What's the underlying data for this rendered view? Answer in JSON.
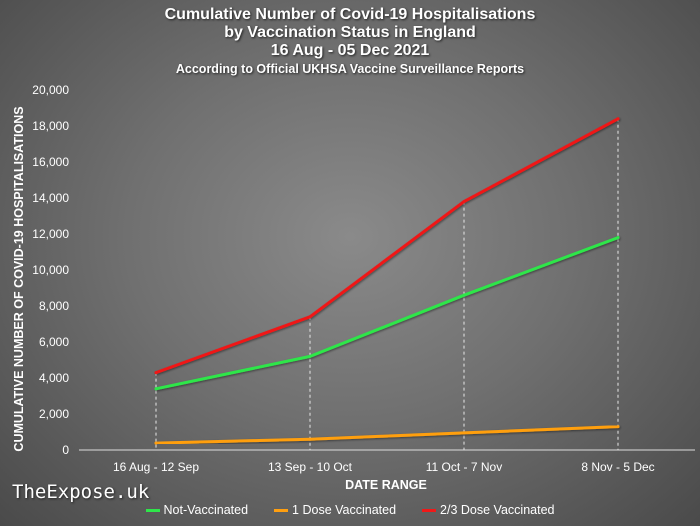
{
  "chart_data": {
    "type": "line",
    "title_lines": [
      "Cumulative Number of Covid-19 Hospitalisations",
      "by Vaccination Status in England",
      "16 Aug - 05 Dec 2021"
    ],
    "subtitle": "According to Official UKHSA Vaccine Surveillance Reports",
    "xlabel": "DATE RANGE",
    "ylabel": "CUMULATIVE NUMBER OF COVID-19 HOSPITALISATIONS",
    "categories": [
      "16 Aug - 12 Sep",
      "13 Sep - 10 Oct",
      "11 Oct - 7 Nov",
      "8 Nov - 5 Dec"
    ],
    "ylim": [
      0,
      20000
    ],
    "yticks": [
      0,
      2000,
      4000,
      6000,
      8000,
      10000,
      12000,
      14000,
      16000,
      18000,
      20000
    ],
    "ytick_labels": [
      "0",
      "2,000",
      "4,000",
      "6,000",
      "8,000",
      "10,000",
      "12,000",
      "14,000",
      "16,000",
      "18,000",
      "20,000"
    ],
    "vertical_dashed_gridlines": true,
    "legend_position": "bottom",
    "series": [
      {
        "name": "Not-Vaccinated",
        "color": "#2ee64a",
        "values": [
          3400,
          5200,
          8600,
          11800
        ]
      },
      {
        "name": "1 Dose Vaccinated",
        "color": "#ff9f10",
        "values": [
          380,
          600,
          950,
          1300
        ]
      },
      {
        "name": "2/3 Dose Vaccinated",
        "color": "#f01818",
        "values": [
          4300,
          7400,
          13800,
          18400
        ]
      }
    ]
  },
  "watermark": "TheExpose.uk"
}
